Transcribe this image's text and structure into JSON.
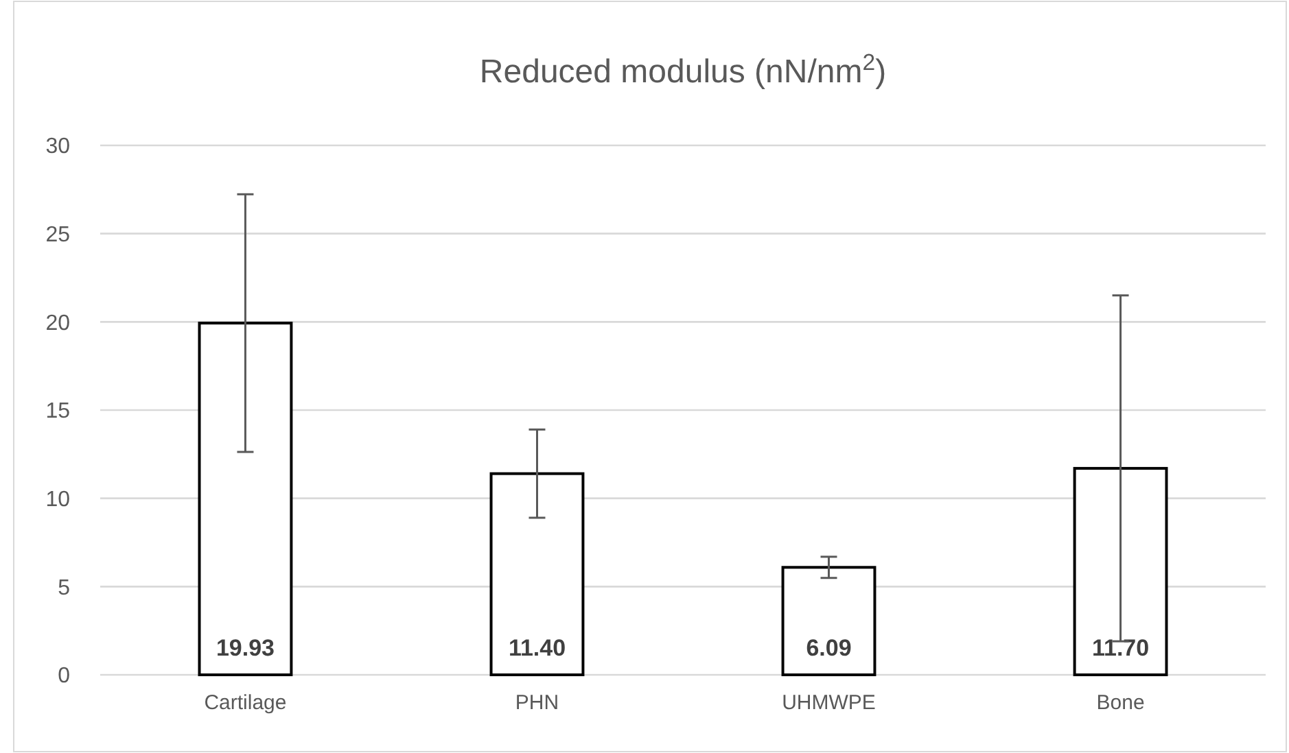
{
  "chart_data": {
    "type": "bar",
    "title": "Reduced modulus (nN/nm$^{2}$)",
    "categories": [
      "Cartilage",
      "PHN",
      "UHMWPE",
      "Bone"
    ],
    "values": [
      19.93,
      11.4,
      6.09,
      11.7
    ],
    "errors": [
      7.3,
      2.5,
      0.6,
      9.8
    ],
    "color": "#ffffff",
    "value_labels": [
      "19.93",
      "11.40",
      "6.09",
      "11.70"
    ],
    "ylim": [
      0,
      30
    ],
    "yticks": [
      0,
      5,
      10,
      15,
      20,
      25,
      30
    ],
    "grid": "y"
  }
}
